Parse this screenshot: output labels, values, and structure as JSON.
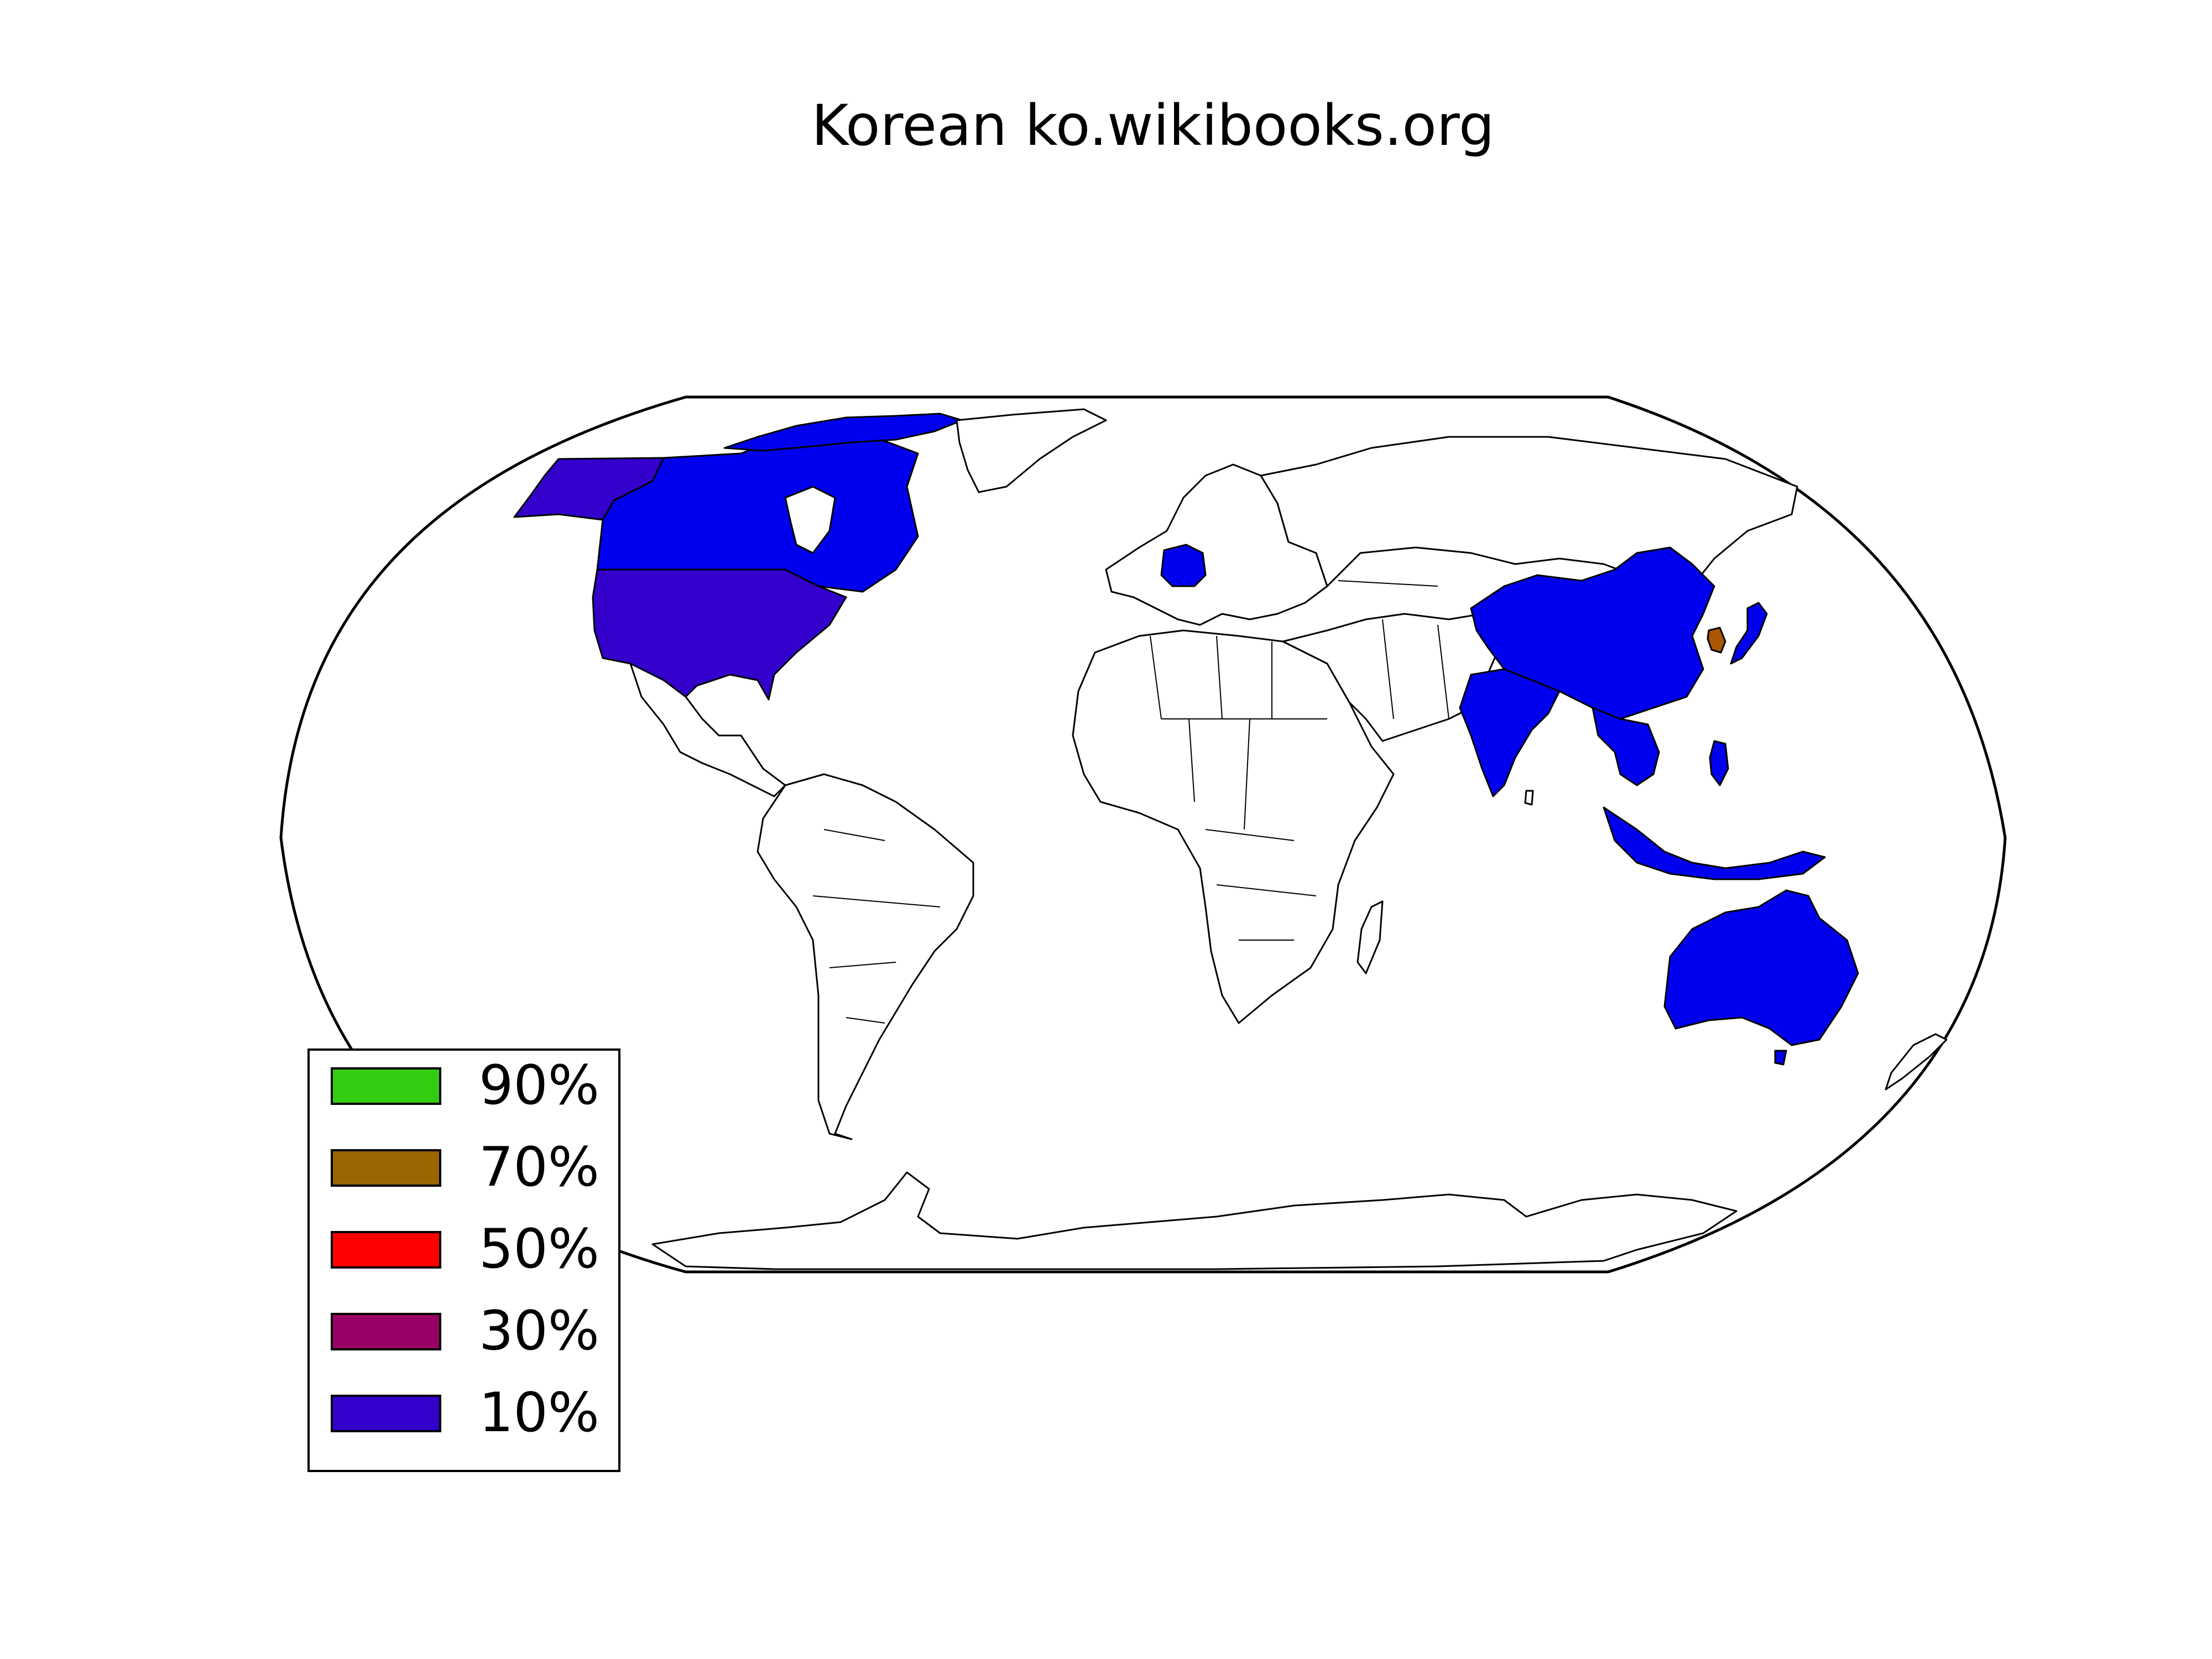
{
  "title": "Korean ko.wikibooks.org",
  "map": {
    "projection": "robinson",
    "background": "#ffffff",
    "land_default": "#ffffff",
    "border_color": "#000000",
    "highlighted_regions": [
      {
        "region": "Canada",
        "color": "#0000ee"
      },
      {
        "region": "Alaska",
        "color": "#3300cc"
      },
      {
        "region": "United States",
        "color": "#3300cc"
      },
      {
        "region": "Greenland-islands",
        "color": "#0000ee"
      },
      {
        "region": "Germany",
        "color": "#0000ee"
      },
      {
        "region": "China",
        "color": "#0000ee"
      },
      {
        "region": "India",
        "color": "#0000ee"
      },
      {
        "region": "Japan",
        "color": "#0000ee"
      },
      {
        "region": "South Korea",
        "color": "#aa5500"
      },
      {
        "region": "Southeast Asia",
        "color": "#0000ee"
      },
      {
        "region": "Indonesia",
        "color": "#0000ee"
      },
      {
        "region": "Philippines",
        "color": "#0000ee"
      },
      {
        "region": "Australia",
        "color": "#0000ee"
      }
    ]
  },
  "legend": {
    "placement": "lower-left",
    "items": [
      {
        "label": "90%",
        "color": "#33cc11"
      },
      {
        "label": "70%",
        "color": "#996600"
      },
      {
        "label": "50%",
        "color": "#ff0000"
      },
      {
        "label": "30%",
        "color": "#990066"
      },
      {
        "label": "10%",
        "color": "#3300cc"
      }
    ]
  }
}
